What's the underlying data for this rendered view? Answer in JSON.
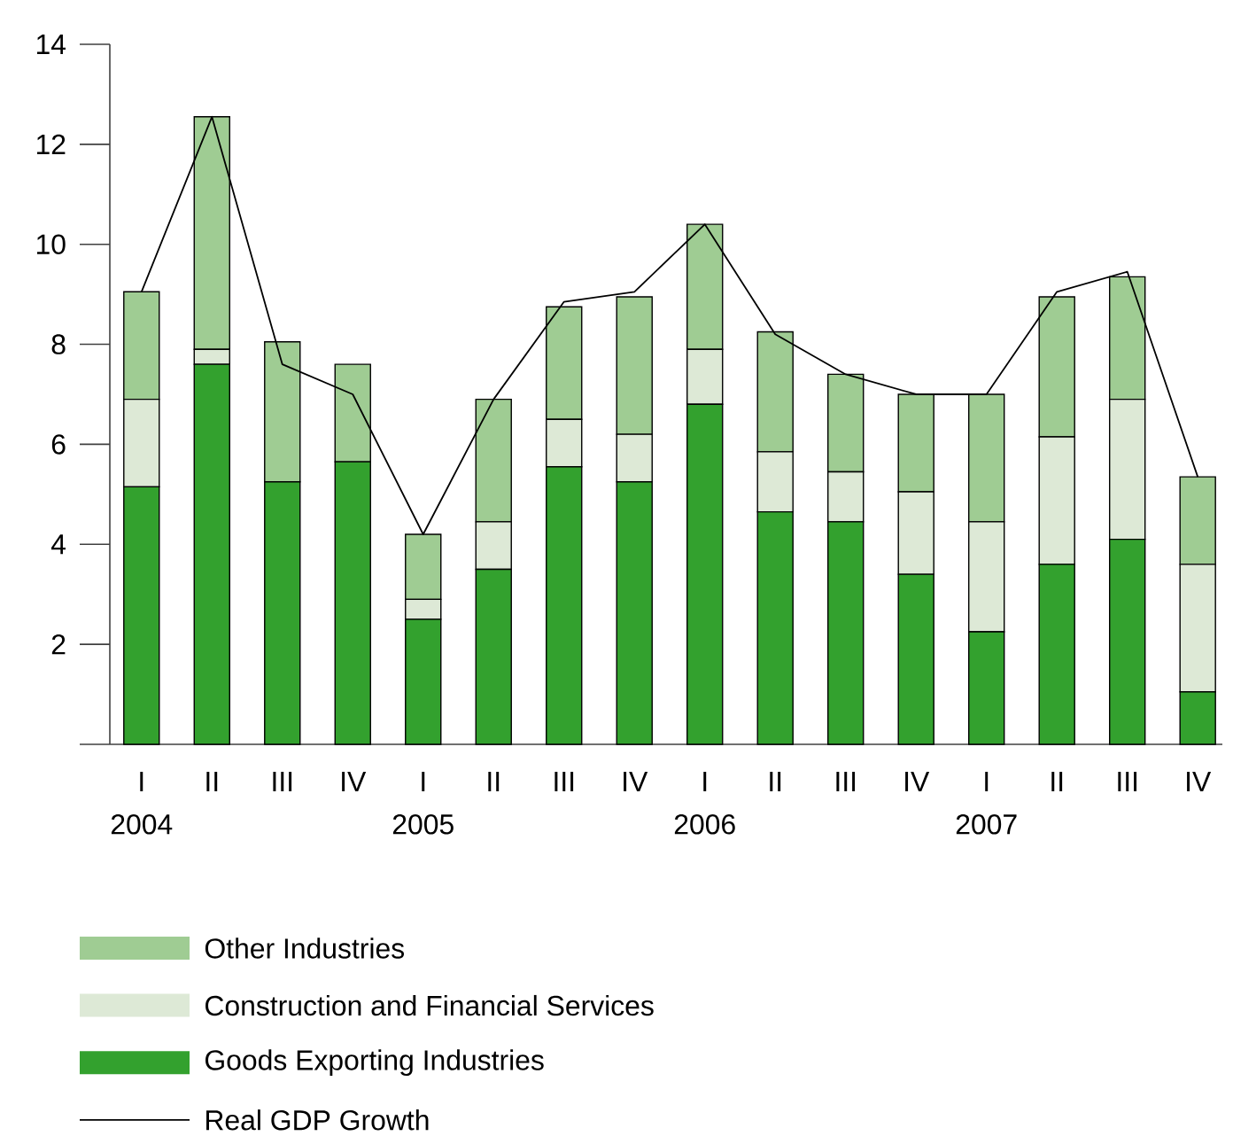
{
  "chart_data": {
    "type": "bar",
    "stacked": true,
    "categories": [
      "I",
      "II",
      "III",
      "IV",
      "I",
      "II",
      "III",
      "IV",
      "I",
      "II",
      "III",
      "IV",
      "I",
      "II",
      "III",
      "IV"
    ],
    "series": [
      {
        "name": "Goods Exporting Industries",
        "color": "#33a12e",
        "values": [
          5.15,
          7.6,
          5.25,
          5.65,
          2.5,
          3.5,
          5.55,
          5.25,
          6.8,
          4.65,
          4.45,
          3.4,
          2.25,
          3.6,
          4.1,
          1.05
        ]
      },
      {
        "name": "Construction and Financial Services",
        "color": "#dde9d6",
        "values": [
          1.75,
          0.3,
          0,
          0,
          0.4,
          0.95,
          0.95,
          0.95,
          1.1,
          1.2,
          1.0,
          1.65,
          2.2,
          2.55,
          2.8,
          2.55
        ]
      },
      {
        "name": "Other Industries",
        "color": "#9fcc93",
        "values": [
          2.15,
          4.65,
          2.8,
          1.95,
          1.3,
          2.45,
          2.25,
          2.75,
          2.5,
          2.4,
          1.95,
          1.95,
          2.55,
          2.8,
          2.45,
          1.75
        ]
      },
      {
        "name": "Real GDP Growth",
        "type": "line",
        "color": "#000000",
        "values": [
          9.05,
          12.55,
          7.6,
          7.0,
          4.2,
          6.9,
          8.85,
          9.05,
          10.4,
          8.2,
          7.4,
          7.0,
          7.0,
          9.05,
          9.45,
          5.35
        ]
      }
    ],
    "annotations": [
      "2004",
      "2005",
      "2006",
      "2007"
    ],
    "ylim": [
      0,
      14
    ],
    "yticks": [
      {
        "value": 0,
        "label": null
      },
      2,
      4,
      6,
      8,
      10,
      12,
      14
    ],
    "grid": false,
    "legend": "bottom",
    "marker": "none",
    "line_style": "solid"
  }
}
